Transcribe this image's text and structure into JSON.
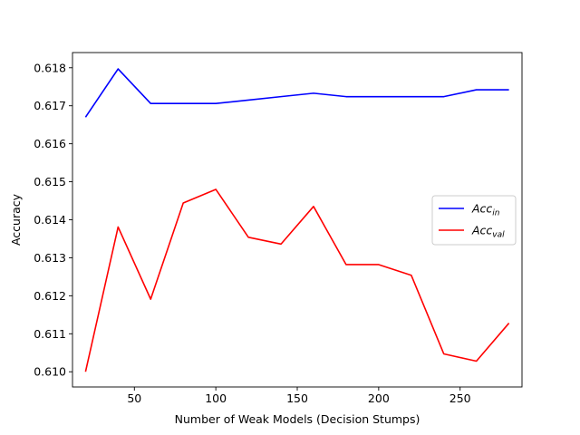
{
  "chart_data": {
    "type": "line",
    "title": "",
    "xlabel": "Number of Weak Models (Decision Stumps)",
    "ylabel": "Accuracy",
    "xlim": [
      12.0,
      288.0
    ],
    "ylim": [
      0.6096,
      0.6184
    ],
    "xticks": [
      50,
      100,
      150,
      200,
      250
    ],
    "xtick_labels": [
      "50",
      "100",
      "150",
      "200",
      "250"
    ],
    "yticks": [
      0.61,
      0.611,
      0.612,
      0.613,
      0.614,
      0.615,
      0.616,
      0.617,
      0.618
    ],
    "ytick_labels": [
      "0.610",
      "0.611",
      "0.612",
      "0.613",
      "0.614",
      "0.615",
      "0.616",
      "0.617",
      "0.618"
    ],
    "grid": false,
    "legend_position": "center-right",
    "x": [
      20,
      40,
      60,
      80,
      100,
      120,
      140,
      160,
      180,
      200,
      220,
      240,
      260,
      280
    ],
    "series": [
      {
        "name": "Acc",
        "name_sub": "in",
        "color": "#0000ff",
        "values": [
          0.6167,
          0.61797,
          0.61706,
          0.61706,
          0.61706,
          0.61715,
          0.61724,
          0.61733,
          0.61724,
          0.61724,
          0.61724,
          0.61724,
          0.61742,
          0.61742
        ]
      },
      {
        "name": "Acc",
        "name_sub": "val",
        "color": "#ff0000",
        "values": [
          0.61,
          0.61381,
          0.61191,
          0.61444,
          0.6148,
          0.61354,
          0.61336,
          0.61435,
          0.61282,
          0.61282,
          0.61254,
          0.61047,
          0.61028,
          0.61128
        ]
      }
    ]
  }
}
